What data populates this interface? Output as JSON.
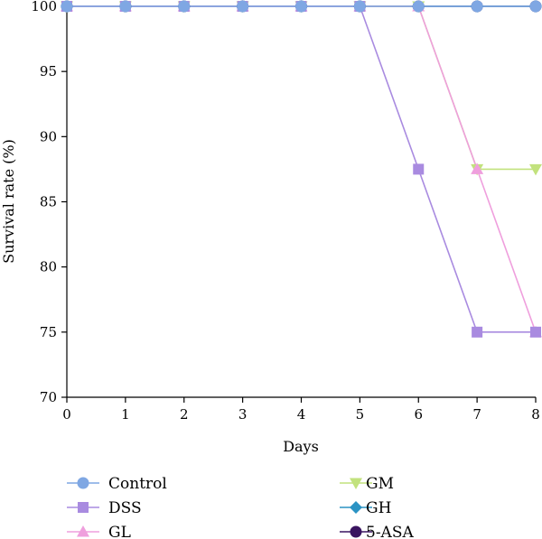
{
  "chart_data": {
    "type": "line",
    "title": "",
    "xlabel": "Days",
    "ylabel": "Survival rate (%)",
    "x": [
      0,
      1,
      2,
      3,
      4,
      5,
      6,
      7,
      8
    ],
    "xlim": [
      0,
      8
    ],
    "ylim": [
      70,
      100
    ],
    "xticks": [
      0,
      1,
      2,
      3,
      4,
      5,
      6,
      7,
      8
    ],
    "yticks": [
      70,
      75,
      80,
      85,
      90,
      95,
      100
    ],
    "grid": false,
    "legend_position": "bottom",
    "series": [
      {
        "name": "Control",
        "values": [
          100,
          100,
          100,
          100,
          100,
          100,
          100,
          100,
          100
        ],
        "color": "#7fa7e3",
        "marker": "circle"
      },
      {
        "name": "DSS",
        "values": [
          100,
          100,
          100,
          100,
          100,
          100,
          87.5,
          75,
          75
        ],
        "color": "#a98be0",
        "marker": "square"
      },
      {
        "name": "GL",
        "values": [
          100,
          100,
          100,
          100,
          100,
          100,
          100,
          87.5,
          75
        ],
        "color": "#ef9fdd",
        "marker": "triangle-up"
      },
      {
        "name": "GM",
        "values": [
          100,
          100,
          100,
          100,
          100,
          100,
          100,
          87.5,
          87.5
        ],
        "color": "#c2e27d",
        "marker": "triangle-down"
      },
      {
        "name": "GH",
        "values": [
          100,
          100,
          100,
          100,
          100,
          100,
          100,
          100,
          100
        ],
        "color": "#2b93c4",
        "marker": "diamond"
      },
      {
        "name": "5-ASA",
        "values": [
          100,
          100,
          100,
          100,
          100,
          100,
          100,
          100,
          100
        ],
        "color": "#3a1460",
        "marker": "circle"
      }
    ]
  }
}
